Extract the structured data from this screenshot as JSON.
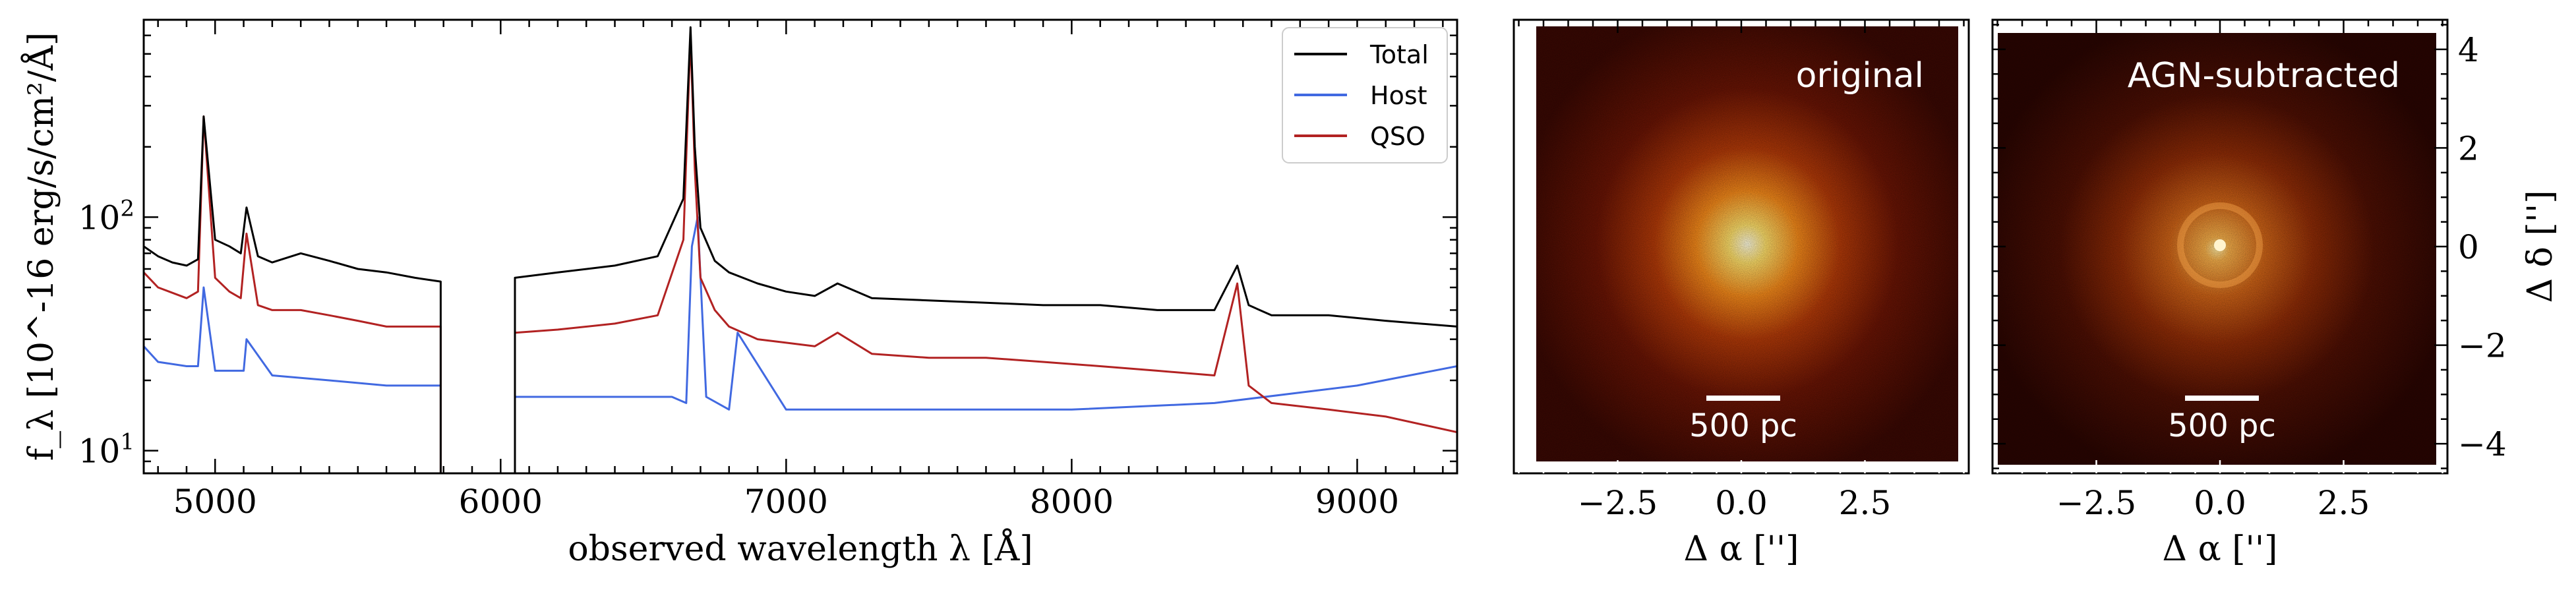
{
  "chart_data": [
    {
      "type": "line",
      "xlabel": "observed wavelength λ [Å]",
      "ylabel": "f_λ [10^-16 erg/s/cm²/Å]",
      "yscale": "log",
      "xlim": [
        4750,
        9350
      ],
      "ylim": [
        8,
        700
      ],
      "x_ticks": [
        5000,
        6000,
        7000,
        8000,
        9000
      ],
      "x_tick_labels": [
        "5000",
        "6000",
        "7000",
        "8000",
        "9000"
      ],
      "y_ticks": [
        10,
        100
      ],
      "y_tick_labels": [
        "10^1",
        "10^2"
      ],
      "gap": [
        5790,
        6050
      ],
      "legend": {
        "placement": "top-right"
      },
      "series": [
        {
          "name": "Total",
          "color": "#000000",
          "x": [
            4750,
            4800,
            4850,
            4900,
            4940,
            4960,
            5000,
            5050,
            5090,
            5110,
            5150,
            5200,
            5300,
            5400,
            5500,
            5600,
            5700,
            5790,
            6050,
            6200,
            6400,
            6550,
            6640,
            6665,
            6680,
            6700,
            6750,
            6800,
            6900,
            7000,
            7100,
            7180,
            7300,
            7500,
            7700,
            7900,
            8100,
            8300,
            8500,
            8580,
            8620,
            8700,
            8900,
            9100,
            9350
          ],
          "y": [
            75,
            68,
            64,
            62,
            66,
            270,
            80,
            75,
            70,
            110,
            68,
            64,
            70,
            65,
            60,
            58,
            55,
            53,
            55,
            58,
            62,
            68,
            120,
            650,
            200,
            90,
            65,
            58,
            52,
            48,
            46,
            52,
            45,
            44,
            43,
            42,
            42,
            40,
            40,
            62,
            42,
            38,
            38,
            36,
            34
          ]
        },
        {
          "name": "Host",
          "color": "#4169e1",
          "x": [
            4750,
            4800,
            4900,
            4940,
            4960,
            5000,
            5100,
            5110,
            5200,
            5400,
            5600,
            5790,
            6050,
            6300,
            6600,
            6650,
            6670,
            6690,
            6720,
            6800,
            6830,
            7000,
            7500,
            8000,
            8500,
            9000,
            9350
          ],
          "y": [
            28,
            24,
            23,
            23,
            50,
            22,
            22,
            30,
            21,
            20,
            19,
            19,
            17,
            17,
            17,
            16,
            75,
            100,
            17,
            15,
            32,
            15,
            15,
            15,
            16,
            19,
            23
          ]
        },
        {
          "name": "QSO",
          "color": "#b22222",
          "x": [
            4750,
            4800,
            4900,
            4940,
            4960,
            5000,
            5050,
            5090,
            5110,
            5150,
            5200,
            5300,
            5400,
            5500,
            5600,
            5700,
            5790,
            6050,
            6200,
            6400,
            6550,
            6640,
            6665,
            6680,
            6700,
            6750,
            6800,
            6900,
            7000,
            7100,
            7180,
            7300,
            7500,
            7700,
            7900,
            8100,
            8300,
            8500,
            8580,
            8620,
            8700,
            8900,
            9100,
            9350
          ],
          "y": [
            58,
            50,
            45,
            48,
            270,
            55,
            48,
            45,
            85,
            42,
            40,
            40,
            38,
            36,
            34,
            34,
            34,
            32,
            33,
            35,
            38,
            80,
            600,
            160,
            55,
            40,
            34,
            30,
            29,
            28,
            32,
            26,
            25,
            25,
            24,
            23,
            22,
            21,
            52,
            19,
            16,
            15,
            14,
            12
          ]
        }
      ]
    },
    {
      "type": "heatmap",
      "label": "original",
      "xlabel": "Δ α ['']",
      "xlim": [
        -4.6,
        4.6
      ],
      "x_ticks": [
        -2.5,
        0.0,
        2.5
      ],
      "x_tick_labels": [
        "−2.5",
        "0.0",
        "2.5"
      ],
      "scalebar_label": "500 pc"
    },
    {
      "type": "heatmap",
      "label": "AGN-subtracted",
      "xlabel": "Δ α ['']",
      "ylabel": "Δ δ ['']",
      "xlim": [
        -4.6,
        4.6
      ],
      "ylim": [
        -4.6,
        4.6
      ],
      "x_ticks": [
        -2.5,
        0.0,
        2.5
      ],
      "x_tick_labels": [
        "−2.5",
        "0.0",
        "2.5"
      ],
      "y_ticks": [
        -4,
        -2,
        0,
        2,
        4
      ],
      "y_tick_labels": [
        "−4",
        "−2",
        "0",
        "2",
        "4"
      ],
      "scalebar_label": "500 pc"
    }
  ]
}
